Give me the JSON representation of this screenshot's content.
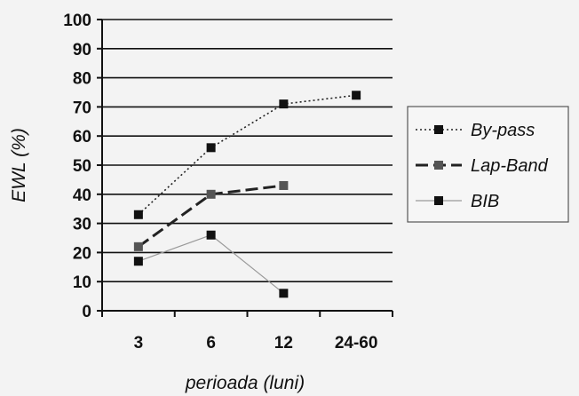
{
  "chart_data": {
    "type": "line",
    "categories": [
      "3",
      "6",
      "12",
      "24-60"
    ],
    "xlabel": "perioada (luni)",
    "ylabel": "EWL (%)",
    "ylim": [
      0,
      100
    ],
    "yticks": [
      "0",
      "10",
      "20",
      "30",
      "40",
      "50",
      "60",
      "70",
      "80",
      "90",
      "100"
    ],
    "grid": "horizontal",
    "legend_position": "right",
    "series": [
      {
        "name": "By-pass",
        "values": [
          33,
          56,
          71,
          74
        ],
        "color": "#222222",
        "line_style": "dotted",
        "marker_color": "#111111"
      },
      {
        "name": "Lap-Band",
        "values": [
          22,
          40,
          43,
          null
        ],
        "color": "#222222",
        "line_style": "dashed",
        "marker_color": "#555555"
      },
      {
        "name": "BIB",
        "values": [
          17,
          26,
          6,
          null
        ],
        "color": "#999999",
        "line_style": "solid",
        "marker_color": "#111111"
      }
    ]
  }
}
